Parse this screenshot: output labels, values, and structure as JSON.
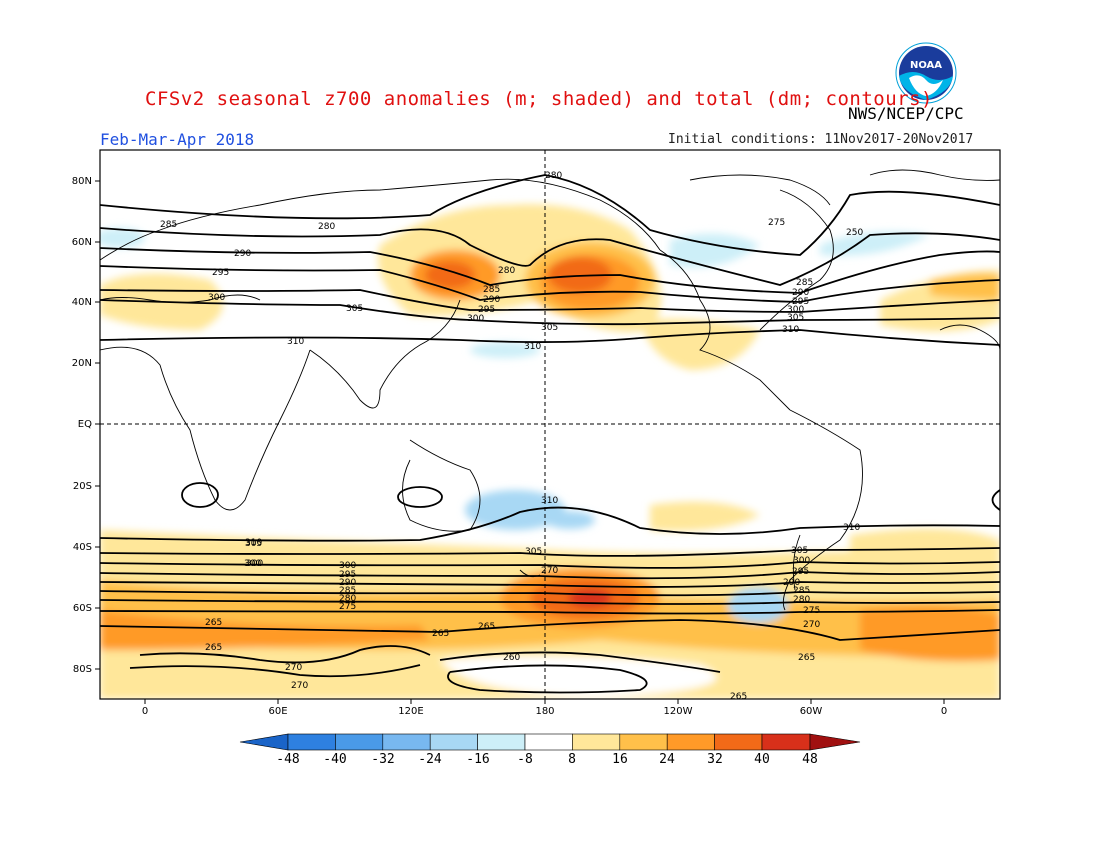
{
  "title": "CFSv2 seasonal z700 anomalies (m; shaded) and total (dm; contours)",
  "agency": "NWS/NCEP/CPC",
  "period": "Feb-Mar-Apr 2018",
  "initial_conditions": "Initial conditions: 11Nov2017-20Nov2017",
  "logo_text": "NOAA",
  "map": {
    "lat_ticks": [
      "80N",
      "60N",
      "40N",
      "20N",
      "EQ",
      "20S",
      "40S",
      "60S",
      "80S"
    ],
    "lon_ticks": [
      "0",
      "60E",
      "120E",
      "180",
      "120W",
      "60W",
      "0"
    ]
  },
  "contour_labels": [
    {
      "id": "c280a",
      "text": "280"
    },
    {
      "id": "c285a",
      "text": "285"
    },
    {
      "id": "c280b",
      "text": "280"
    },
    {
      "id": "c290a",
      "text": "290"
    },
    {
      "id": "c295a",
      "text": "295"
    },
    {
      "id": "c300a",
      "text": "300"
    },
    {
      "id": "c305a",
      "text": "305"
    },
    {
      "id": "c310a",
      "text": "310"
    },
    {
      "id": "c280c",
      "text": "280"
    },
    {
      "id": "c285b",
      "text": "285"
    },
    {
      "id": "c290b",
      "text": "290"
    },
    {
      "id": "c295b",
      "text": "295"
    },
    {
      "id": "c300b",
      "text": "300"
    },
    {
      "id": "c305b",
      "text": "305"
    },
    {
      "id": "c310b",
      "text": "310"
    },
    {
      "id": "c275a",
      "text": "275"
    },
    {
      "id": "c250a",
      "text": "250"
    },
    {
      "id": "c285c",
      "text": "285"
    },
    {
      "id": "c290c",
      "text": "290"
    },
    {
      "id": "c295c",
      "text": "295"
    },
    {
      "id": "c300c",
      "text": "300"
    },
    {
      "id": "c305c",
      "text": "305"
    },
    {
      "id": "c310c",
      "text": "310"
    },
    {
      "id": "c310d",
      "text": "310"
    },
    {
      "id": "c310e",
      "text": "310"
    },
    {
      "id": "c305d",
      "text": "305"
    },
    {
      "id": "c300d",
      "text": "300"
    },
    {
      "id": "c295d",
      "text": "295"
    },
    {
      "id": "c290d",
      "text": "290"
    },
    {
      "id": "c285d",
      "text": "285"
    },
    {
      "id": "c280d",
      "text": "280"
    },
    {
      "id": "c275b",
      "text": "275"
    },
    {
      "id": "c270a",
      "text": "270"
    },
    {
      "id": "c265a",
      "text": "265"
    },
    {
      "id": "c265b",
      "text": "265"
    },
    {
      "id": "c265c",
      "text": "265"
    },
    {
      "id": "c265d",
      "text": "265"
    },
    {
      "id": "c270b",
      "text": "270"
    },
    {
      "id": "c270c",
      "text": "270"
    },
    {
      "id": "c260a",
      "text": "260"
    },
    {
      "id": "c305e",
      "text": "305"
    },
    {
      "id": "c300e",
      "text": "300"
    },
    {
      "id": "c310f",
      "text": "310"
    },
    {
      "id": "c305f",
      "text": "305"
    },
    {
      "id": "c300f",
      "text": "300"
    },
    {
      "id": "c295e",
      "text": "295"
    },
    {
      "id": "c290e",
      "text": "290"
    },
    {
      "id": "c285e",
      "text": "285"
    },
    {
      "id": "c280e",
      "text": "280"
    },
    {
      "id": "c275c",
      "text": "275"
    },
    {
      "id": "c270d",
      "text": "270"
    },
    {
      "id": "c265e",
      "text": "265"
    },
    {
      "id": "c265f",
      "text": "265"
    },
    {
      "id": "c300g",
      "text": "300"
    }
  ],
  "colorbar": {
    "labels": [
      "-48",
      "-40",
      "-32",
      "-24",
      "-16",
      "-8",
      "8",
      "16",
      "24",
      "32",
      "40",
      "48"
    ],
    "colors": [
      "#1a64c8",
      "#2e80e0",
      "#4a9ae8",
      "#78b8f0",
      "#a8d8f4",
      "#cdeff8",
      "#ffffff",
      "#ffe79a",
      "#ffc04a",
      "#ff9a28",
      "#f26a18",
      "#d8301a",
      "#a01010"
    ]
  }
}
